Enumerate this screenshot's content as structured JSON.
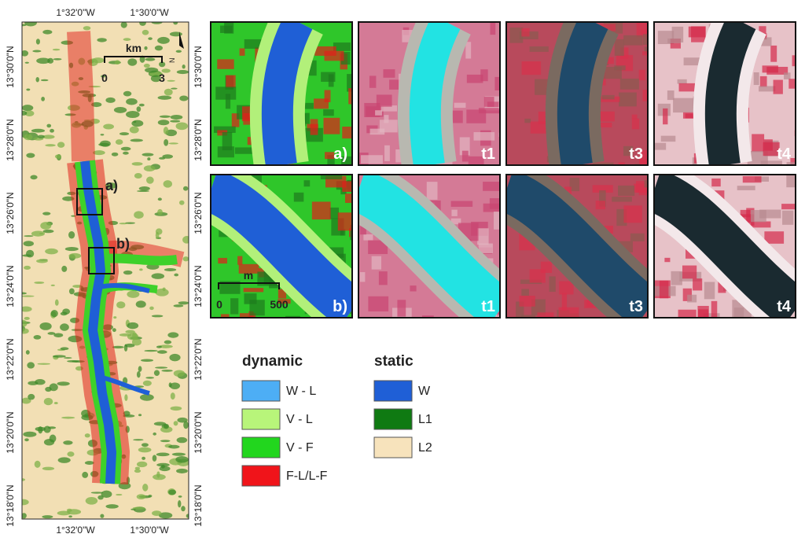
{
  "map": {
    "top_labels": [
      "1°32'0\"W",
      "1°30'0\"W"
    ],
    "bottom_labels": [
      "1°32'0\"W",
      "1°30'0\"W"
    ],
    "left_labels": [
      "13°30'0\"N",
      "13°28'0\"N",
      "13°26'0\"N",
      "13°24'0\"N",
      "13°22'0\"N",
      "13°20'0\"N",
      "13°18'0\"N"
    ],
    "right_labels": [
      "13°30'0\"N",
      "13°28'0\"N",
      "13°26'0\"N",
      "13°24'0\"N",
      "13°22'0\"N",
      "13°20'0\"N",
      "13°18'0\"N"
    ],
    "scale": {
      "unit": "km",
      "start": "0",
      "end": "3"
    },
    "north": "N",
    "boxes": [
      "a)",
      "b)"
    ]
  },
  "panels": [
    {
      "label": "a)"
    },
    {
      "label": "t1"
    },
    {
      "label": "t3"
    },
    {
      "label": "t4"
    },
    {
      "label": "b)"
    },
    {
      "label": "t1"
    },
    {
      "label": "t3"
    },
    {
      "label": "t4"
    }
  ],
  "panel_scale": {
    "unit": "m",
    "start": "0",
    "end": "500"
  },
  "legend": {
    "dynamic": {
      "title": "dynamic",
      "items": [
        "W - L",
        "V - L",
        "V - F",
        "F-L/L-F"
      ]
    },
    "static": {
      "title": "static",
      "items": [
        "W",
        "L1",
        "L2"
      ]
    }
  }
}
